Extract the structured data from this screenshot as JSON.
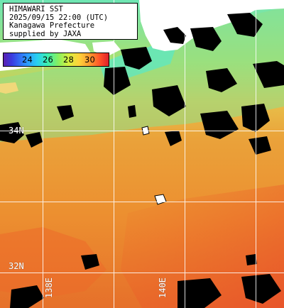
{
  "info": {
    "lines": [
      "HIMAWARI SST",
      "2025/09/15 22:00 (UTC)",
      "Kanagawa Prefecture",
      "supplied by JAXA"
    ]
  },
  "colorbar": {
    "ticks": [
      "24",
      "26",
      "28",
      "30"
    ],
    "colors": [
      "#5a1fb0",
      "#2f8cff",
      "#3df0b0",
      "#d8f040",
      "#ff9a30",
      "#e0202a"
    ]
  },
  "grid": {
    "lat_labels": [
      "34N",
      "32N"
    ],
    "lon_labels": [
      "138E",
      "140E"
    ]
  },
  "colors": {
    "land": "#ffffff",
    "cloud": "#000000",
    "ocean_warm": "#e8852a",
    "ocean_cool": "#8fdc8c",
    "grid": "#ffffff"
  }
}
